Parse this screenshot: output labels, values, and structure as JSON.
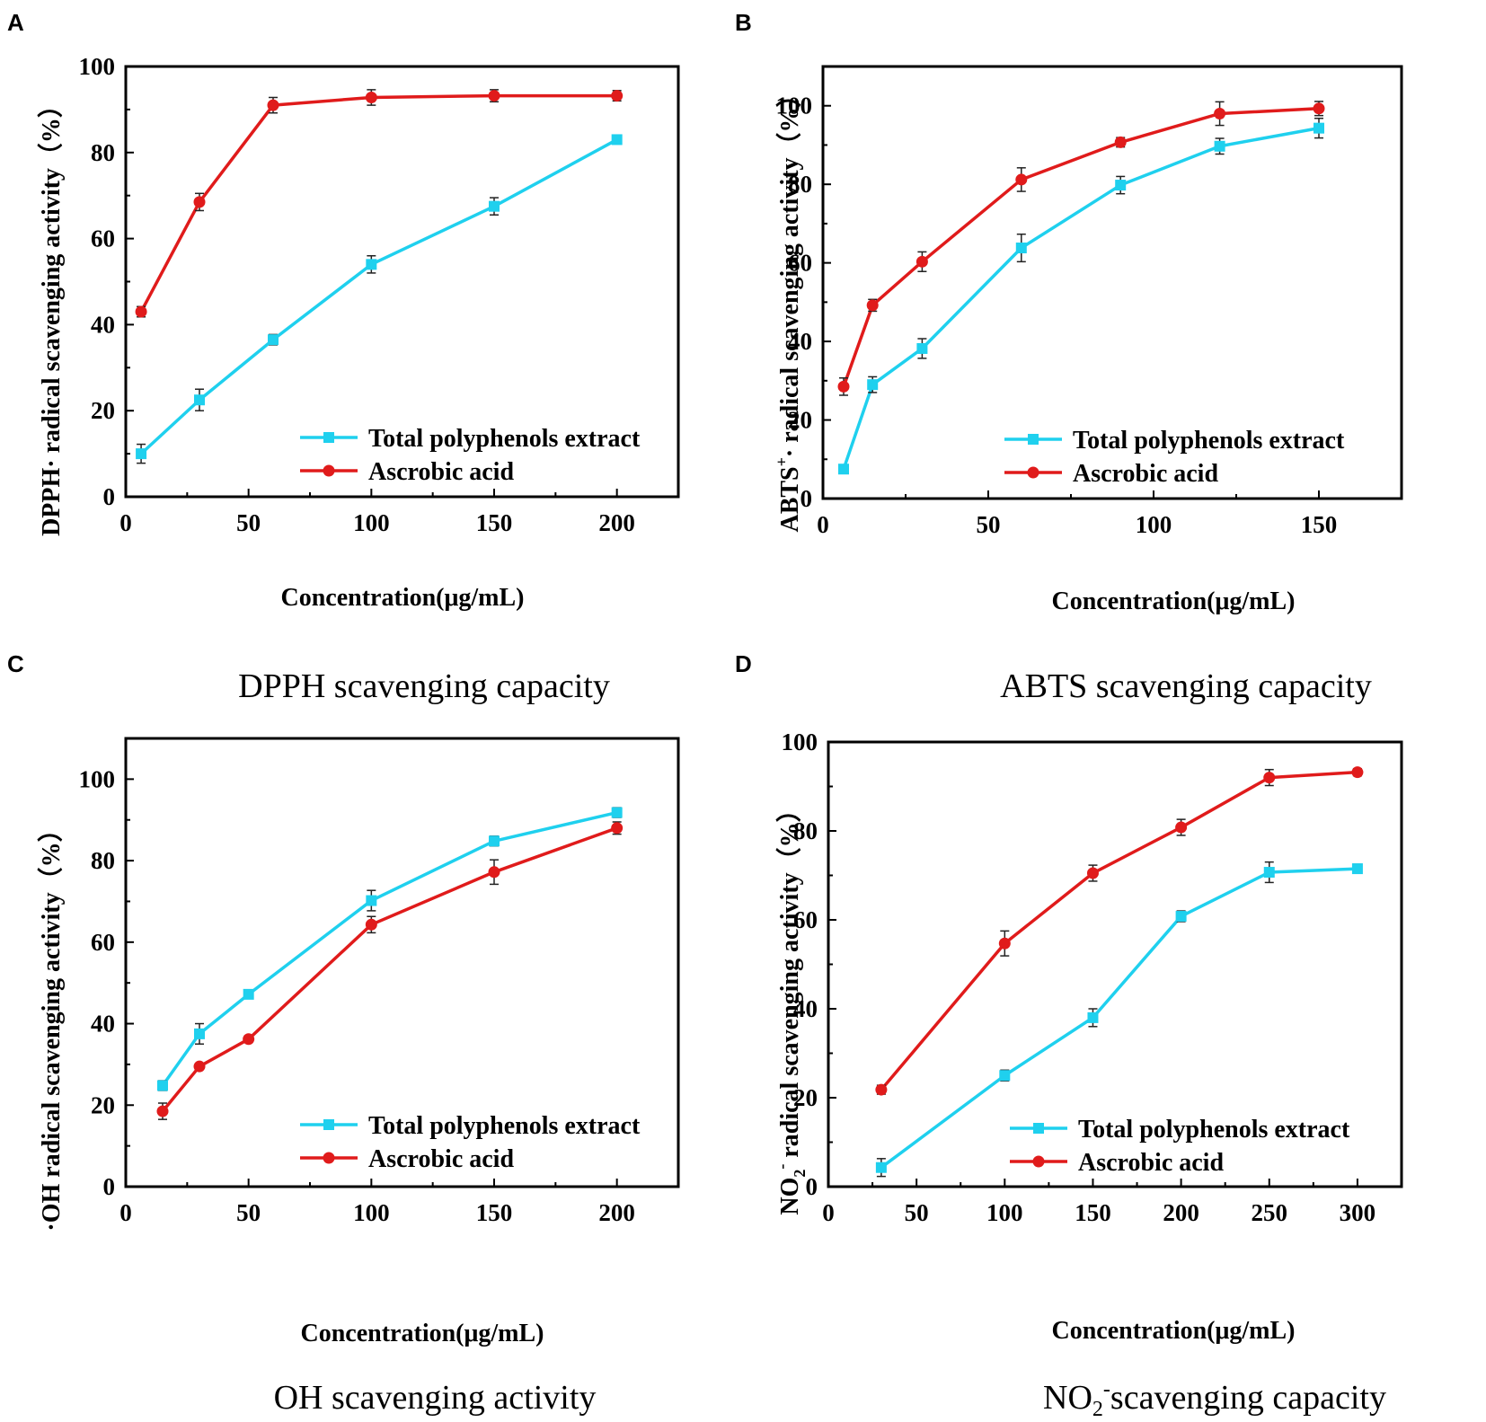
{
  "colors": {
    "extract": "#1fd0ee",
    "ascorbic": "#e01b1b",
    "axis": "#000000"
  },
  "captions": {
    "a": "DPPH scavenging capacity",
    "b": "ABTS scavenging capacity",
    "c": "OH scavenging activity",
    "d_main": "NO",
    "d_sub": "2",
    "d_sup": "-",
    "d_rest": "scavenging capacity"
  },
  "chart_data": [
    {
      "id": "a",
      "panel": "A",
      "type": "line",
      "xlabel": "Concentration(μg/mL)",
      "ylabel_parts": [
        "DPPH· radical scavenging activity（%）"
      ],
      "xlim": [
        0,
        225
      ],
      "ylim": [
        0,
        100
      ],
      "xticks": [
        0,
        50,
        100,
        150,
        200
      ],
      "yticks": [
        0,
        20,
        40,
        60,
        80,
        100
      ],
      "series": [
        {
          "name": "Total polyphenols extract",
          "key": "extract",
          "marker": "square",
          "x": [
            6.25,
            30,
            60,
            100,
            150,
            200
          ],
          "y": [
            10,
            22.5,
            36.5,
            54,
            67.5,
            83
          ],
          "err": [
            2.2,
            2.5,
            1.2,
            2,
            2,
            0.8
          ]
        },
        {
          "name": "Ascrobic acid",
          "key": "ascorbic",
          "marker": "circle",
          "x": [
            6.25,
            30,
            60,
            100,
            150,
            200
          ],
          "y": [
            43,
            68.5,
            91,
            92.8,
            93.2,
            93.2
          ],
          "err": [
            1.2,
            2,
            1.8,
            1.8,
            1.4,
            1.2
          ]
        }
      ]
    },
    {
      "id": "b",
      "panel": "B",
      "type": "line",
      "xlabel": "Concentration(μg/mL)",
      "ylabel_parts": [
        "ABTS",
        "+",
        "· radical scavenging activity（%）"
      ],
      "xlim": [
        0,
        175
      ],
      "ylim": [
        0,
        110
      ],
      "xticks": [
        0,
        50,
        100,
        150
      ],
      "yticks": [
        0,
        20,
        40,
        60,
        80,
        100
      ],
      "series": [
        {
          "name": "Total polyphenols extract",
          "key": "extract",
          "marker": "square",
          "x": [
            6.25,
            15,
            30,
            60,
            90,
            120,
            150
          ],
          "y": [
            7.5,
            29,
            38.2,
            63.8,
            79.8,
            89.7,
            94.3
          ],
          "err": [
            0.8,
            2,
            2.5,
            3.5,
            2.2,
            2,
            2.5
          ]
        },
        {
          "name": "Ascrobic acid",
          "key": "ascorbic",
          "marker": "circle",
          "x": [
            6.25,
            15,
            30,
            60,
            90,
            120,
            150
          ],
          "y": [
            28.5,
            49.2,
            60.3,
            81.2,
            90.7,
            98,
            99.3
          ],
          "err": [
            2.2,
            1.5,
            2.5,
            3,
            1.2,
            3,
            1.8
          ]
        }
      ]
    },
    {
      "id": "c",
      "panel": "C",
      "type": "line",
      "xlabel": "Concentration(μg/mL)",
      "ylabel_parts": [
        "·OH radical scavenging activity（%）"
      ],
      "xlim": [
        0,
        225
      ],
      "ylim": [
        0,
        110
      ],
      "xticks": [
        0,
        50,
        100,
        150,
        200
      ],
      "yticks": [
        0,
        20,
        40,
        60,
        80,
        100
      ],
      "series": [
        {
          "name": "Total polyphenols extract",
          "key": "extract",
          "marker": "square",
          "x": [
            15,
            30,
            50,
            100,
            150,
            200
          ],
          "y": [
            24.8,
            37.5,
            47.2,
            70.2,
            84.8,
            91.8
          ],
          "err": [
            1.2,
            2.5,
            0.5,
            2.5,
            1.2,
            1.2
          ]
        },
        {
          "name": "Ascrobic acid",
          "key": "ascorbic",
          "marker": "circle",
          "x": [
            15,
            30,
            50,
            100,
            150,
            200
          ],
          "y": [
            18.5,
            29.5,
            36.2,
            64.3,
            77.2,
            88
          ],
          "err": [
            2,
            0.6,
            0.6,
            2,
            3,
            1.5
          ]
        }
      ]
    },
    {
      "id": "d",
      "panel": "D",
      "type": "line",
      "xlabel": "Concentration(μg/mL)",
      "ylabel_parts": [
        "NO",
        "2",
        "-",
        " radical scavenging activity（%）"
      ],
      "xlim": [
        0,
        325
      ],
      "ylim": [
        0,
        100
      ],
      "xticks": [
        0,
        50,
        100,
        150,
        200,
        250,
        300
      ],
      "yticks": [
        0,
        20,
        40,
        60,
        80,
        100
      ],
      "series": [
        {
          "name": "Total polyphenols extract",
          "key": "extract",
          "marker": "square",
          "x": [
            30,
            100,
            150,
            200,
            250,
            300
          ],
          "y": [
            4.3,
            25,
            38,
            60.8,
            70.7,
            71.5
          ],
          "err": [
            2,
            1.2,
            2,
            1.2,
            2.3,
            1
          ]
        },
        {
          "name": "Ascrobic acid",
          "key": "ascorbic",
          "marker": "circle",
          "x": [
            30,
            100,
            150,
            200,
            250,
            300
          ],
          "y": [
            21.8,
            54.7,
            70.5,
            80.8,
            92,
            93.2
          ],
          "err": [
            1,
            2.8,
            1.8,
            1.8,
            1.8,
            0.8
          ]
        }
      ]
    }
  ]
}
